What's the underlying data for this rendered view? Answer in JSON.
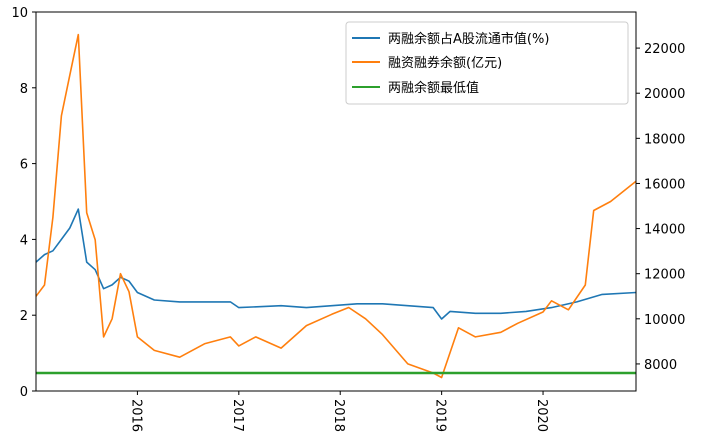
{
  "chart_data": {
    "type": "line",
    "title": "",
    "xlabel": "",
    "x_ticks": [
      "2016",
      "2017",
      "2018",
      "2019",
      "2020"
    ],
    "x_range": [
      "2015-01",
      "2020-12"
    ],
    "left_axis": {
      "ylim": [
        0,
        10
      ],
      "ticks": [
        0,
        2,
        4,
        6,
        8,
        10
      ],
      "label": ""
    },
    "right_axis": {
      "ylim": [
        6800,
        23600
      ],
      "ticks": [
        8000,
        10000,
        12000,
        14000,
        16000,
        18000,
        20000,
        22000
      ],
      "label": ""
    },
    "legend": {
      "placement": "top-right"
    },
    "series": [
      {
        "name": "两融余额占A股流通市值(%)",
        "axis": "left",
        "color": "#1f77b4",
        "points": [
          [
            "2015-01",
            3.4
          ],
          [
            "2015-02",
            3.6
          ],
          [
            "2015-03",
            3.7
          ],
          [
            "2015-04",
            4.0
          ],
          [
            "2015-05",
            4.3
          ],
          [
            "2015-06",
            4.8
          ],
          [
            "2015-07",
            3.4
          ],
          [
            "2015-08",
            3.2
          ],
          [
            "2015-09",
            2.7
          ],
          [
            "2015-10",
            2.8
          ],
          [
            "2015-11",
            3.0
          ],
          [
            "2015-12",
            2.9
          ],
          [
            "2016-01",
            2.6
          ],
          [
            "2016-03",
            2.4
          ],
          [
            "2016-06",
            2.35
          ],
          [
            "2016-09",
            2.35
          ],
          [
            "2016-12",
            2.35
          ],
          [
            "2017-01",
            2.2
          ],
          [
            "2017-06",
            2.25
          ],
          [
            "2017-09",
            2.2
          ],
          [
            "2017-12",
            2.25
          ],
          [
            "2018-03",
            2.3
          ],
          [
            "2018-06",
            2.3
          ],
          [
            "2018-09",
            2.25
          ],
          [
            "2018-12",
            2.2
          ],
          [
            "2019-01",
            1.9
          ],
          [
            "2019-02",
            2.1
          ],
          [
            "2019-05",
            2.05
          ],
          [
            "2019-08",
            2.05
          ],
          [
            "2019-11",
            2.1
          ],
          [
            "2020-02",
            2.2
          ],
          [
            "2020-05",
            2.35
          ],
          [
            "2020-08",
            2.55
          ],
          [
            "2020-12",
            2.6
          ]
        ]
      },
      {
        "name": "融资融券余额(亿元)",
        "axis": "right",
        "color": "#ff7f0e",
        "points": [
          [
            "2015-01",
            11000
          ],
          [
            "2015-02",
            11500
          ],
          [
            "2015-03",
            14500
          ],
          [
            "2015-04",
            19000
          ],
          [
            "2015-05",
            20800
          ],
          [
            "2015-06",
            22600
          ],
          [
            "2015-07",
            14700
          ],
          [
            "2015-08",
            13500
          ],
          [
            "2015-09",
            9200
          ],
          [
            "2015-10",
            10000
          ],
          [
            "2015-11",
            12000
          ],
          [
            "2015-12",
            11200
          ],
          [
            "2016-01",
            9200
          ],
          [
            "2016-03",
            8600
          ],
          [
            "2016-06",
            8300
          ],
          [
            "2016-09",
            8900
          ],
          [
            "2016-12",
            9200
          ],
          [
            "2017-01",
            8800
          ],
          [
            "2017-03",
            9200
          ],
          [
            "2017-06",
            8700
          ],
          [
            "2017-09",
            9700
          ],
          [
            "2017-12",
            10200
          ],
          [
            "2018-02",
            10500
          ],
          [
            "2018-04",
            10000
          ],
          [
            "2018-06",
            9300
          ],
          [
            "2018-09",
            8000
          ],
          [
            "2018-12",
            7600
          ],
          [
            "2019-01",
            7400
          ],
          [
            "2019-03",
            9600
          ],
          [
            "2019-05",
            9200
          ],
          [
            "2019-08",
            9400
          ],
          [
            "2019-10",
            9800
          ],
          [
            "2020-01",
            10300
          ],
          [
            "2020-02",
            10800
          ],
          [
            "2020-04",
            10400
          ],
          [
            "2020-06",
            11500
          ],
          [
            "2020-07",
            14800
          ],
          [
            "2020-09",
            15200
          ],
          [
            "2020-12",
            16100
          ]
        ]
      },
      {
        "name": "两融余额最低值",
        "axis": "right",
        "color": "#2ca02c",
        "points": [
          [
            "2015-01",
            7600
          ],
          [
            "2020-12",
            7600
          ]
        ]
      }
    ]
  }
}
